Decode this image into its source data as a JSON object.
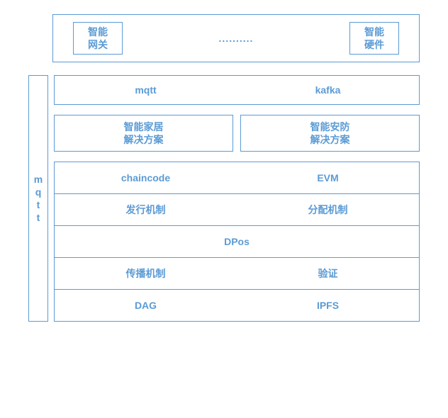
{
  "colors": {
    "border": "#5b9bd5",
    "text": "#5b9bd5",
    "background": "#ffffff"
  },
  "typography": {
    "font_family": "Microsoft YaHei",
    "base_font_size": 14
  },
  "top": {
    "left": "智能\n网关",
    "dots": "..........",
    "right": "智能\n硬件"
  },
  "sidebar": {
    "chars": [
      "m",
      "q",
      "t",
      "t"
    ]
  },
  "rows": {
    "protocol": {
      "left": "mqtt",
      "right": "kafka"
    },
    "solutions": {
      "left": "智能家居\n解决方案",
      "right": "智能安防\n解决方案"
    },
    "stack": [
      {
        "type": "two",
        "left": "chaincode",
        "right": "EVM"
      },
      {
        "type": "two",
        "left": "发行机制",
        "right": "分配机制"
      },
      {
        "type": "one",
        "value": "DPos"
      },
      {
        "type": "two",
        "left": "传播机制",
        "right": "验证"
      },
      {
        "type": "two",
        "left": "DAG",
        "right": "IPFS"
      }
    ]
  }
}
